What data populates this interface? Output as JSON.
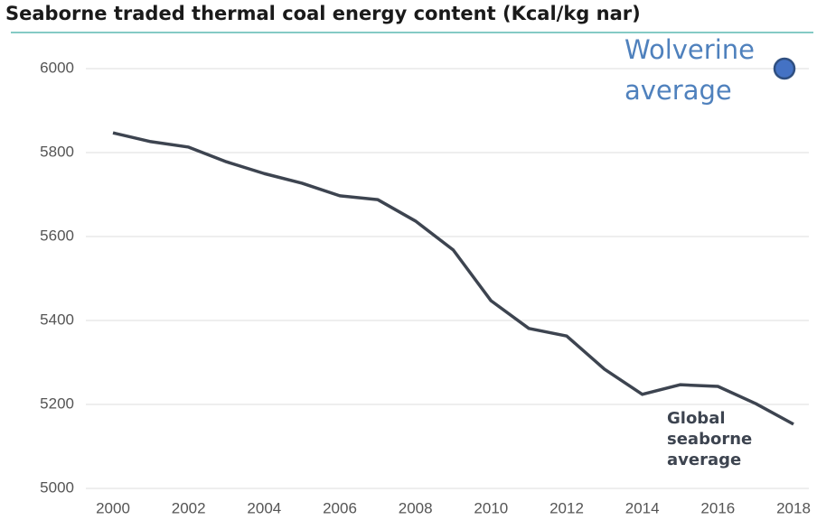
{
  "chart_data": {
    "type": "line",
    "title": "Seaborne traded thermal coal energy content (Kcal/kg nar)",
    "x": [
      2000,
      2001,
      2002,
      2003,
      2004,
      2005,
      2006,
      2007,
      2008,
      2009,
      2010,
      2011,
      2012,
      2013,
      2014,
      2015,
      2016,
      2017,
      2018
    ],
    "series": [
      {
        "name": "Global seaborne average",
        "color": "#3d4450",
        "values": [
          5847,
          5826,
          5813,
          5778,
          5750,
          5727,
          5697,
          5688,
          5637,
          5568,
          5447,
          5381,
          5363,
          5284,
          5224,
          5247,
          5243,
          5202,
          5153
        ]
      },
      {
        "name": "Wolverine average",
        "color": "#4472c4",
        "x": [
          2018
        ],
        "values": [
          6000
        ]
      }
    ],
    "xlim": [
      2000,
      2018
    ],
    "xticks": [
      2000,
      2002,
      2004,
      2006,
      2008,
      2010,
      2012,
      2014,
      2016,
      2018
    ],
    "ylim": [
      5000,
      6000
    ],
    "yticks": [
      5000,
      5200,
      5400,
      5600,
      5800,
      6000
    ],
    "grid": true
  }
}
